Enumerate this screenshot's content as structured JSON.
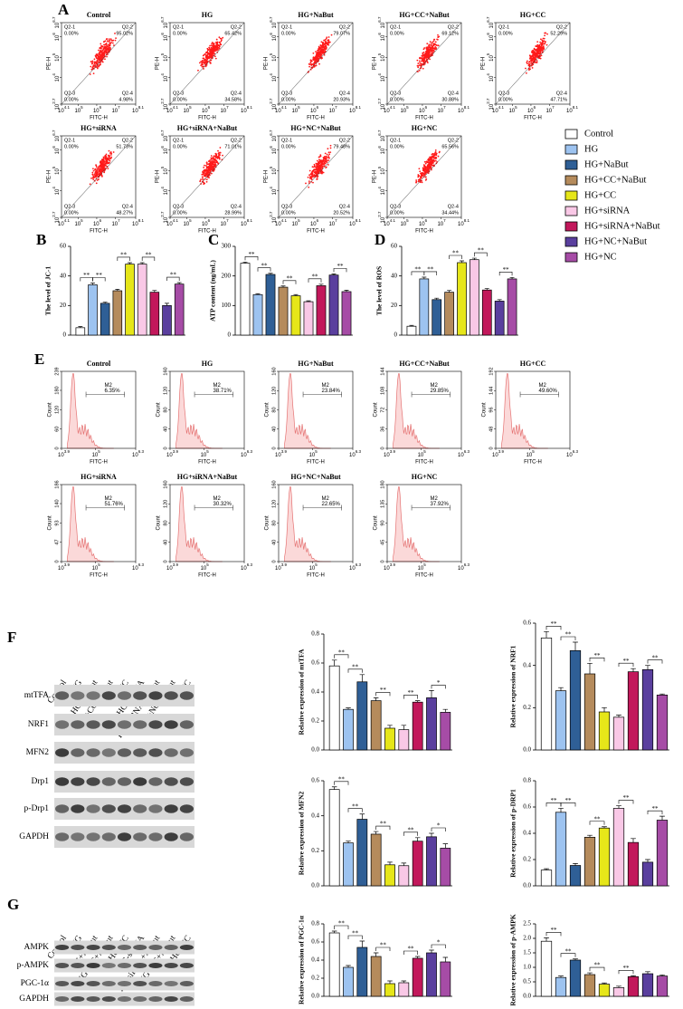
{
  "legend": {
    "labels": [
      "Control",
      "HG",
      "HG+NaBut",
      "HG+CC+NaBut",
      "HG+CC",
      "HG+siRNA",
      "HG+siRNA+NaBut",
      "HG+NC+NaBut",
      "HG+NC"
    ],
    "colors": [
      "#ffffff",
      "#9dc3f0",
      "#2f5f96",
      "#b58b5c",
      "#e6e619",
      "#f9c8e6",
      "#c2185b",
      "#5a3f9e",
      "#a64ca6"
    ]
  },
  "flow_scatter": {
    "label": "A",
    "xlabel": "FITC-H",
    "ylabel": "PE-H",
    "tick_base": "10",
    "xtick_exps": [
      "4.1",
      "5",
      "6",
      "7",
      "8.1"
    ],
    "ytick_exps": [
      "2.7",
      "4",
      "5",
      "6",
      "6.7"
    ],
    "plots": [
      {
        "title": "Control",
        "quadrants": [
          {
            "name": "Q2-1",
            "value": "0.00%"
          },
          {
            "name": "Q2-2",
            "value": "95.02%"
          },
          {
            "name": "Q2-3",
            "value": "0.00%"
          },
          {
            "name": "Q2-4",
            "value": "4.98%"
          }
        ]
      },
      {
        "title": "HG",
        "quadrants": [
          {
            "name": "Q2-1",
            "value": "0.00%"
          },
          {
            "name": "Q2-2",
            "value": "65.42%"
          },
          {
            "name": "Q2-3",
            "value": "0.00%"
          },
          {
            "name": "Q2-4",
            "value": "34.58%"
          }
        ]
      },
      {
        "title": "HG+NaBut",
        "quadrants": [
          {
            "name": "Q2-1",
            "value": "0.00%"
          },
          {
            "name": "Q2-2",
            "value": "79.07%"
          },
          {
            "name": "Q2-3",
            "value": "0.00%"
          },
          {
            "name": "Q2-4",
            "value": "20.93%"
          }
        ]
      },
      {
        "title": "HG+CC+NaBut",
        "quadrants": [
          {
            "name": "Q2-1",
            "value": "0.00%"
          },
          {
            "name": "Q2-2",
            "value": "69.12%"
          },
          {
            "name": "Q2-3",
            "value": "0.00%"
          },
          {
            "name": "Q2-4",
            "value": "30.88%"
          }
        ]
      },
      {
        "title": "HG+CC",
        "quadrants": [
          {
            "name": "Q2-1",
            "value": "0.00%"
          },
          {
            "name": "Q2-2",
            "value": "52.29%"
          },
          {
            "name": "Q2-3",
            "value": "0.00%"
          },
          {
            "name": "Q2-4",
            "value": "47.71%"
          }
        ]
      },
      {
        "title": "HG+siRNA",
        "quadrants": [
          {
            "name": "Q2-1",
            "value": "0.00%"
          },
          {
            "name": "Q2-2",
            "value": "51.73%"
          },
          {
            "name": "Q2-3",
            "value": "0.00%"
          },
          {
            "name": "Q2-4",
            "value": "48.27%"
          }
        ]
      },
      {
        "title": "HG+siRNA+NaBut",
        "quadrants": [
          {
            "name": "Q2-1",
            "value": "0.00%"
          },
          {
            "name": "Q2-2",
            "value": "71.01%"
          },
          {
            "name": "Q2-3",
            "value": "0.00%"
          },
          {
            "name": "Q2-4",
            "value": "28.99%"
          }
        ]
      },
      {
        "title": "HG+NC+NaBut",
        "quadrants": [
          {
            "name": "Q2-1",
            "value": "0.00%"
          },
          {
            "name": "Q2-2",
            "value": "79.48%"
          },
          {
            "name": "Q2-3",
            "value": "0.00%"
          },
          {
            "name": "Q2-4",
            "value": "20.52%"
          }
        ]
      },
      {
        "title": "HG+NC",
        "quadrants": [
          {
            "name": "Q2-1",
            "value": "0.00%"
          },
          {
            "name": "Q2-2",
            "value": "65.56%"
          },
          {
            "name": "Q2-3",
            "value": "0.00%"
          },
          {
            "name": "Q2-4",
            "value": "34.44%"
          }
        ]
      }
    ]
  },
  "flow_hist": {
    "label": "E",
    "xlabel": "FITC-H",
    "ylabel": "Count",
    "gate_label": "M2",
    "tick_base": "10",
    "xtick_exps": [
      "3.9",
      "5",
      "6.3"
    ],
    "plots": [
      {
        "title": "Control",
        "yticks": [
          0,
          60,
          120,
          180,
          239
        ],
        "percent": "6.35%"
      },
      {
        "title": "HG",
        "yticks": [
          0,
          40,
          80,
          120,
          160
        ],
        "percent": "38.71%"
      },
      {
        "title": "HG+NaBut",
        "yticks": [
          0,
          40,
          80,
          120,
          160
        ],
        "percent": "23.84%"
      },
      {
        "title": "HG+CC+NaBut",
        "yticks": [
          0,
          36,
          72,
          108,
          144
        ],
        "percent": "29.85%"
      },
      {
        "title": "HG+CC",
        "yticks": [
          0,
          48,
          96,
          144,
          192
        ],
        "percent": "49.60%"
      },
      {
        "title": "HG+siRNA",
        "yticks": [
          0,
          47,
          93,
          140,
          186
        ],
        "percent": "51.76%"
      },
      {
        "title": "HG+siRNA+NaBut",
        "yticks": [
          0,
          40,
          80,
          120,
          160
        ],
        "percent": "30.32%"
      },
      {
        "title": "HG+NC+NaBut",
        "yticks": [
          0,
          40,
          80,
          120,
          160
        ],
        "percent": "22.65%"
      },
      {
        "title": "HG+NC",
        "yticks": [
          0,
          45,
          90,
          135,
          180
        ],
        "percent": "37.92%"
      }
    ]
  },
  "blots": [
    {
      "label": "F",
      "lanes": [
        "Control",
        "HG",
        "HG+NaBut",
        "HG+CC+NaBut",
        "HG+CC",
        "HG+siRNA",
        "HG+siRNA+NaBut",
        "HG+NC+NaBut",
        "HG+NC"
      ],
      "rows": [
        "mtTFA",
        "NRF1",
        "MFN2",
        "Drp1",
        "p-Drp1",
        "GAPDH"
      ]
    },
    {
      "label": "G",
      "lanes": [
        "Control",
        "HG",
        "HG+NaBut",
        "HG+CC+NaBut",
        "HG+CC",
        "HG-siRNA",
        "HG-siRNA+NaBut",
        "HG+NC+NaBut",
        "HG+NC"
      ],
      "rows": [
        "AMPK",
        "p-AMPK",
        "PGC-1α",
        "GAPDH"
      ]
    }
  ],
  "chart_data": [
    {
      "type": "bar",
      "label": "B",
      "ylabel": "The level of JC-1",
      "values": [
        5,
        34,
        21.5,
        30,
        48,
        48,
        29,
        20,
        34.5
      ],
      "errors": [
        0.8,
        1.2,
        0.8,
        1,
        1,
        1,
        1.2,
        1.5,
        1
      ],
      "ylim": [
        0,
        60
      ],
      "yticks": [
        0,
        20,
        40,
        60
      ],
      "annotations": [
        {
          "text": "**",
          "between": [
            0,
            1
          ]
        },
        {
          "text": "**",
          "between": [
            1,
            2
          ]
        },
        {
          "text": "**",
          "between": [
            3,
            4
          ]
        },
        {
          "text": "**",
          "between": [
            5,
            6
          ]
        },
        {
          "text": "**",
          "between": [
            7,
            8
          ]
        }
      ]
    },
    {
      "type": "bar",
      "label": "C",
      "ylabel": "ATP content (ng/mL)",
      "values": [
        243,
        137,
        205,
        162,
        133,
        113,
        167,
        203,
        147
      ],
      "errors": [
        4,
        3,
        4,
        4,
        4,
        3,
        5,
        4,
        5
      ],
      "ylim": [
        0,
        300
      ],
      "yticks": [
        0,
        100,
        200,
        300
      ],
      "annotations": [
        {
          "text": "**",
          "between": [
            0,
            1
          ]
        },
        {
          "text": "**",
          "between": [
            1,
            2
          ]
        },
        {
          "text": "**",
          "between": [
            3,
            4
          ]
        },
        {
          "text": "**",
          "between": [
            5,
            6
          ]
        },
        {
          "text": "**",
          "between": [
            7,
            8
          ]
        }
      ]
    },
    {
      "type": "bar",
      "label": "D",
      "ylabel": "The level of ROS",
      "values": [
        6,
        38,
        24,
        29,
        49,
        51,
        30.5,
        23,
        38
      ],
      "errors": [
        0.6,
        1.2,
        1,
        1.2,
        1.2,
        1,
        1,
        1,
        1
      ],
      "ylim": [
        0,
        60
      ],
      "yticks": [
        0,
        20,
        40,
        60
      ],
      "annotations": [
        {
          "text": "**",
          "between": [
            0,
            1
          ]
        },
        {
          "text": "**",
          "between": [
            1,
            2
          ]
        },
        {
          "text": "**",
          "between": [
            3,
            4
          ]
        },
        {
          "text": "**",
          "between": [
            5,
            6
          ]
        },
        {
          "text": "**",
          "between": [
            7,
            8
          ]
        }
      ]
    },
    {
      "type": "bar",
      "ylabel": "Relative expression of mtTFA",
      "values": [
        0.58,
        0.28,
        0.47,
        0.34,
        0.15,
        0.14,
        0.33,
        0.36,
        0.26
      ],
      "errors": [
        0.04,
        0.01,
        0.05,
        0.02,
        0.02,
        0.03,
        0.01,
        0.05,
        0.02
      ],
      "ylim": [
        0,
        0.8
      ],
      "yticks": [
        {
          "value": 0,
          "label": "0.0"
        },
        0.2,
        0.4,
        0.6,
        0.8
      ],
      "annotations": [
        {
          "text": "**",
          "between": [
            0,
            1
          ]
        },
        {
          "text": "**",
          "between": [
            1,
            2
          ]
        },
        {
          "text": "**",
          "between": [
            3,
            4
          ]
        },
        {
          "text": "**",
          "between": [
            5,
            6
          ]
        },
        {
          "text": "*",
          "between": [
            7,
            8
          ]
        }
      ]
    },
    {
      "type": "bar",
      "ylabel": "Relative expression of NRF1",
      "values": [
        0.53,
        0.28,
        0.47,
        0.36,
        0.18,
        0.155,
        0.37,
        0.38,
        0.26
      ],
      "errors": [
        0.03,
        0.015,
        0.04,
        0.05,
        0.02,
        0.01,
        0.015,
        0.02,
        0.005
      ],
      "ylim": [
        0,
        0.6
      ],
      "yticks": [
        {
          "value": 0,
          "label": "0.0"
        },
        0.2,
        0.4,
        0.6
      ],
      "annotations": [
        {
          "text": "**",
          "between": [
            0,
            1
          ]
        },
        {
          "text": "**",
          "between": [
            1,
            2
          ]
        },
        {
          "text": "**",
          "between": [
            3,
            4
          ]
        },
        {
          "text": "**",
          "between": [
            5,
            6
          ]
        },
        {
          "text": "**",
          "between": [
            7,
            8
          ]
        }
      ]
    },
    {
      "type": "bar",
      "ylabel": "Relative expression of MFN2",
      "values": [
        0.55,
        0.245,
        0.38,
        0.295,
        0.12,
        0.115,
        0.255,
        0.28,
        0.215
      ],
      "errors": [
        0.015,
        0.01,
        0.03,
        0.015,
        0.015,
        0.015,
        0.02,
        0.02,
        0.025
      ],
      "ylim": [
        0,
        0.6
      ],
      "yticks": [
        {
          "value": 0,
          "label": "0.0"
        },
        0.2,
        0.4,
        0.6
      ],
      "annotations": [
        {
          "text": "**",
          "between": [
            0,
            1
          ]
        },
        {
          "text": "**",
          "between": [
            1,
            2
          ]
        },
        {
          "text": "**",
          "between": [
            3,
            4
          ]
        },
        {
          "text": "**",
          "between": [
            5,
            6
          ]
        },
        {
          "text": "*",
          "between": [
            7,
            8
          ]
        }
      ]
    },
    {
      "type": "bar",
      "ylabel": "Relative expression of p-DRP1",
      "values": [
        0.12,
        0.56,
        0.155,
        0.37,
        0.44,
        0.59,
        0.33,
        0.18,
        0.5
      ],
      "errors": [
        0.01,
        0.03,
        0.015,
        0.015,
        0.01,
        0.02,
        0.03,
        0.02,
        0.03
      ],
      "ylim": [
        0,
        0.8
      ],
      "yticks": [
        {
          "value": 0,
          "label": "0.0"
        },
        0.2,
        0.4,
        0.6,
        0.8
      ],
      "annotations": [
        {
          "text": "**",
          "between": [
            0,
            1
          ]
        },
        {
          "text": "**",
          "between": [
            1,
            2
          ]
        },
        {
          "text": "**",
          "between": [
            3,
            4
          ]
        },
        {
          "text": "**",
          "between": [
            5,
            6
          ]
        },
        {
          "text": "**",
          "between": [
            7,
            8
          ]
        }
      ]
    },
    {
      "type": "bar",
      "ylabel": "Relative expression of PGC-1α",
      "values": [
        0.7,
        0.32,
        0.54,
        0.44,
        0.14,
        0.15,
        0.42,
        0.48,
        0.38
      ],
      "errors": [
        0.02,
        0.02,
        0.07,
        0.04,
        0.03,
        0.02,
        0.02,
        0.03,
        0.05
      ],
      "ylim": [
        0,
        0.8
      ],
      "yticks": [
        {
          "value": 0,
          "label": "0.0"
        },
        0.2,
        0.4,
        0.6,
        0.8
      ],
      "annotations": [
        {
          "text": "**",
          "between": [
            0,
            1
          ]
        },
        {
          "text": "**",
          "between": [
            1,
            2
          ]
        },
        {
          "text": "**",
          "between": [
            3,
            4
          ]
        },
        {
          "text": "**",
          "between": [
            5,
            6
          ]
        },
        {
          "text": "*",
          "between": [
            7,
            8
          ]
        }
      ]
    },
    {
      "type": "bar",
      "ylabel": "Relative expression of p-AMPK",
      "values": [
        1.9,
        0.65,
        1.25,
        0.75,
        0.42,
        0.3,
        0.68,
        0.78,
        0.7
      ],
      "errors": [
        0.12,
        0.05,
        0.04,
        0.06,
        0.04,
        0.05,
        0.03,
        0.07,
        0.04
      ],
      "ylim": [
        0,
        2.5
      ],
      "yticks": [
        {
          "value": 0,
          "label": "0.0"
        },
        0.5,
        {
          "value": 1,
          "label": "1.0"
        },
        1.5,
        {
          "value": 2,
          "label": "2.0"
        },
        2.5
      ],
      "annotations": [
        {
          "text": "**",
          "between": [
            0,
            1
          ]
        },
        {
          "text": "**",
          "between": [
            1,
            2
          ]
        },
        {
          "text": "**",
          "between": [
            3,
            4
          ]
        },
        {
          "text": "**",
          "between": [
            5,
            6
          ]
        }
      ]
    }
  ]
}
